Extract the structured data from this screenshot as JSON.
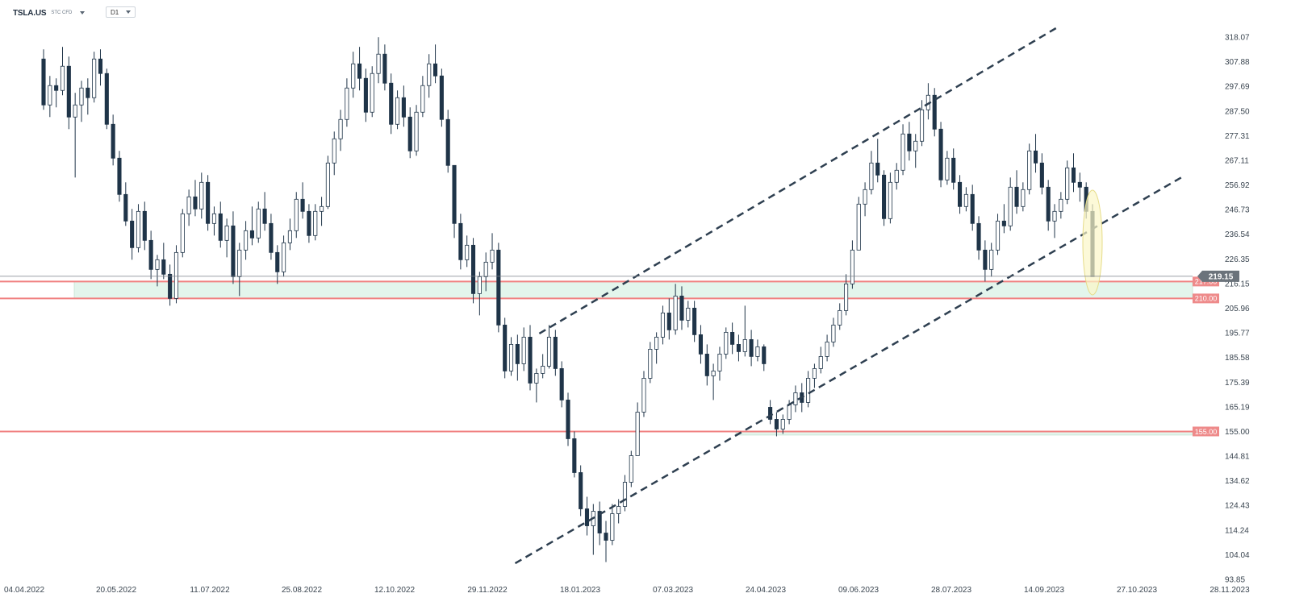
{
  "toolbar": {
    "symbol": "TSLA.US",
    "instrument_type": "STC CFD",
    "timeframe": "D1",
    "symbol_dropdown_icon": "chevron-down-icon",
    "timeframe_dropdown_icon": "chevron-down-icon"
  },
  "colors": {
    "candle_up": "#ffffff",
    "candle_down": "#1f3448",
    "candle_outline": "#1f3448",
    "level_line": "#f08080",
    "zone_fill": "#e3f5ec",
    "trend_line": "#2e3f50",
    "highlight_ellipse": "#fbf6c8",
    "price_tag": "#6b737b"
  },
  "chart_data": {
    "type": "candlestick",
    "ylim": [
      93.85,
      318.07
    ],
    "y_ticks": [
      "318.07",
      "307.88",
      "297.69",
      "287.50",
      "277.31",
      "267.11",
      "256.92",
      "246.73",
      "236.54",
      "226.35",
      "216.15",
      "205.96",
      "195.77",
      "185.58",
      "175.39",
      "165.19",
      "155.00",
      "144.81",
      "134.62",
      "124.43",
      "114.24",
      "104.04",
      "93.85"
    ],
    "x_ticks": [
      "04.04.2022",
      "20.05.2022",
      "11.07.2022",
      "25.08.2022",
      "12.10.2022",
      "29.11.2022",
      "18.01.2023",
      "07.03.2023",
      "24.04.2023",
      "09.06.2023",
      "28.07.2023",
      "14.09.2023",
      "27.10.2023",
      "28.11.2023"
    ],
    "current_price": "219.15",
    "levels": [
      {
        "label": "217.00",
        "value": 217.0
      },
      {
        "label": "210.00",
        "value": 210.0
      },
      {
        "label": "155.00",
        "value": 155.0
      }
    ],
    "support_zones": [
      {
        "from": 210.0,
        "to": 217.0
      },
      {
        "from": 153.5,
        "to": 155.0
      }
    ],
    "trend_channel": {
      "upper": [
        {
          "date": "27.12.2022",
          "value": 195.5
        },
        {
          "date": "20.09.2023",
          "value": 322.0
        }
      ],
      "lower": [
        {
          "date": "14.12.2022",
          "value": 100.5
        },
        {
          "date": "12.11.2023",
          "value": 260.5
        }
      ]
    },
    "series": [
      {
        "values": [
          [
            309.0,
            313.0,
            288.0,
            290.0
          ],
          [
            290.0,
            302.0,
            285.0,
            298.0
          ],
          [
            298.0,
            301.0,
            289.0,
            296.0
          ],
          [
            296.0,
            314.0,
            294.0,
            306.0
          ],
          [
            306.0,
            310.0,
            280.0,
            285.0
          ],
          [
            285.0,
            295.0,
            260.0,
            290.0
          ],
          [
            290.0,
            300.0,
            283.0,
            297.0
          ],
          [
            297.0,
            301.0,
            286.0,
            293.0
          ],
          [
            293.0,
            312.0,
            291.0,
            309.0
          ],
          [
            309.0,
            313.0,
            298.0,
            303.0
          ],
          [
            303.0,
            305.0,
            280.0,
            282.0
          ],
          [
            282.0,
            286.0,
            265.0,
            268.0
          ],
          [
            268.0,
            271.0,
            250.0,
            253.0
          ],
          [
            253.0,
            258.0,
            240.0,
            242.0
          ],
          [
            242.0,
            247.0,
            226.0,
            231.0
          ],
          [
            231.0,
            249.0,
            229.0,
            246.0
          ],
          [
            246.0,
            250.0,
            230.0,
            234.0
          ],
          [
            234.0,
            238.0,
            218.0,
            222.0
          ],
          [
            222.0,
            228.0,
            215.0,
            226.0
          ],
          [
            226.0,
            233.0,
            218.0,
            220.0
          ],
          [
            220.0,
            224.0,
            207.0,
            210.0
          ],
          [
            210.0,
            232.0,
            208.0,
            229.0
          ],
          [
            229.0,
            247.0,
            227.0,
            245.0
          ],
          [
            245.0,
            255.0,
            240.0,
            252.0
          ],
          [
            252.0,
            259.0,
            244.0,
            247.0
          ],
          [
            247.0,
            262.0,
            243.0,
            258.0
          ],
          [
            258.0,
            261.0,
            238.0,
            241.0
          ],
          [
            241.0,
            248.0,
            236.0,
            245.0
          ],
          [
            245.0,
            250.0,
            231.0,
            234.0
          ],
          [
            234.0,
            243.0,
            227.0,
            240.0
          ],
          [
            240.0,
            246.0,
            216.0,
            219.0
          ],
          [
            219.0,
            233.0,
            211.0,
            230.0
          ],
          [
            230.0,
            242.0,
            226.0,
            238.0
          ],
          [
            238.0,
            248.0,
            232.0,
            235.0
          ],
          [
            235.0,
            250.0,
            233.0,
            247.0
          ],
          [
            247.0,
            254.0,
            238.0,
            241.0
          ],
          [
            241.0,
            245.0,
            226.0,
            229.0
          ],
          [
            229.0,
            232.0,
            216.0,
            221.0
          ],
          [
            221.0,
            236.0,
            219.0,
            233.0
          ],
          [
            233.0,
            243.0,
            230.0,
            238.0
          ],
          [
            238.0,
            254.0,
            235.0,
            251.0
          ],
          [
            251.0,
            258.0,
            243.0,
            246.0
          ],
          [
            246.0,
            249.0,
            233.0,
            236.0
          ],
          [
            236.0,
            249.0,
            234.0,
            246.0
          ],
          [
            246.0,
            252.0,
            240.0,
            248.0
          ],
          [
            248.0,
            269.0,
            247.0,
            266.0
          ],
          [
            266.0,
            279.0,
            261.0,
            276.0
          ],
          [
            276.0,
            288.0,
            271.0,
            284.0
          ],
          [
            284.0,
            301.0,
            281.0,
            297.0
          ],
          [
            297.0,
            312.0,
            293.0,
            307.0
          ],
          [
            307.0,
            314.0,
            296.0,
            301.0
          ],
          [
            301.0,
            305.0,
            283.0,
            287.0
          ],
          [
            287.0,
            306.0,
            285.0,
            303.0
          ],
          [
            303.0,
            318.0,
            299.0,
            311.0
          ],
          [
            311.0,
            315.0,
            296.0,
            299.0
          ],
          [
            299.0,
            303.0,
            278.0,
            282.0
          ],
          [
            282.0,
            296.0,
            280.0,
            293.0
          ],
          [
            293.0,
            298.0,
            281.0,
            285.0
          ],
          [
            285.0,
            289.0,
            268.0,
            271.0
          ],
          [
            271.0,
            290.0,
            269.0,
            287.0
          ],
          [
            287.0,
            302.0,
            285.0,
            298.0
          ],
          [
            298.0,
            311.0,
            293.0,
            307.0
          ],
          [
            307.0,
            315.0,
            299.0,
            302.0
          ],
          [
            302.0,
            305.0,
            281.0,
            284.0
          ],
          [
            284.0,
            288.0,
            262.0,
            265.0
          ],
          [
            265.0,
            249.0,
            235.0,
            241.0
          ],
          [
            241.0,
            245.0,
            222.0,
            226.0
          ],
          [
            226.0,
            236.0,
            223.0,
            232.0
          ],
          [
            232.0,
            235.0,
            208.0,
            212.0
          ],
          [
            212.0,
            221.0,
            203.0,
            219.0
          ],
          [
            219.0,
            229.0,
            213.0,
            225.0
          ],
          [
            225.0,
            237.0,
            222.0,
            230.0
          ],
          [
            230.0,
            233.0,
            196.0,
            199.0
          ],
          [
            199.0,
            202.0,
            177.0,
            180.0
          ],
          [
            180.0,
            194.0,
            178.0,
            191.0
          ],
          [
            191.0,
            195.0,
            176.0,
            183.0
          ],
          [
            183.0,
            198.0,
            180.0,
            194.0
          ],
          [
            194.0,
            199.0,
            172.0,
            175.0
          ],
          [
            175.0,
            181.0,
            167.0,
            179.0
          ],
          [
            179.0,
            187.0,
            177.0,
            182.0
          ],
          [
            182.0,
            199.0,
            181.0,
            194.0
          ],
          [
            194.0,
            197.0,
            178.0,
            181.0
          ],
          [
            181.0,
            184.0,
            165.0,
            168.0
          ],
          [
            168.0,
            171.0,
            149.0,
            152.0
          ],
          [
            152.0,
            155.0,
            136.0,
            138.0
          ],
          [
            138.0,
            141.0,
            120.0,
            123.0
          ],
          [
            123.0,
            128.0,
            112.0,
            116.0
          ],
          [
            116.0,
            125.0,
            104.0,
            122.0
          ],
          [
            122.0,
            126.0,
            108.0,
            113.0
          ],
          [
            113.0,
            118.0,
            101.0,
            110.0
          ],
          [
            110.0,
            125.0,
            108.0,
            121.0
          ],
          [
            121.0,
            127.0,
            117.0,
            124.0
          ],
          [
            124.0,
            137.0,
            122.0,
            134.0
          ],
          [
            134.0,
            147.0,
            132.0,
            145.0
          ],
          [
            145.0,
            167.0,
            155.0,
            163.0
          ],
          [
            163.0,
            180.0,
            161.0,
            177.0
          ],
          [
            177.0,
            192.0,
            175.0,
            189.0
          ],
          [
            189.0,
            196.0,
            183.0,
            194.0
          ],
          [
            194.0,
            207.0,
            191.0,
            204.0
          ],
          [
            204.0,
            210.0,
            193.0,
            197.0
          ],
          [
            197.0,
            216.0,
            195.0,
            211.0
          ],
          [
            211.0,
            215.0,
            197.0,
            201.0
          ],
          [
            201.0,
            209.0,
            198.0,
            206.0
          ],
          [
            206.0,
            209.0,
            192.0,
            195.0
          ],
          [
            195.0,
            199.0,
            183.0,
            187.0
          ],
          [
            187.0,
            191.0,
            174.0,
            178.0
          ],
          [
            178.0,
            183.0,
            168.0,
            180.0
          ],
          [
            180.0,
            190.0,
            176.0,
            187.0
          ],
          [
            187.0,
            198.0,
            185.0,
            196.0
          ],
          [
            196.0,
            200.0,
            187.0,
            191.0
          ],
          [
            191.0,
            195.0,
            184.0,
            188.0
          ],
          [
            188.0,
            207.0,
            186.0,
            193.0
          ],
          [
            193.0,
            197.0,
            182.0,
            186.0
          ],
          [
            186.0,
            193.0,
            184.0,
            190.0
          ],
          [
            190.0,
            191.0,
            180.0,
            183.0
          ],
          [
            165.0,
            168.0,
            158.0,
            160.0
          ],
          [
            160.0,
            163.0,
            153.0,
            156.0
          ],
          [
            156.0,
            162.0,
            154.0,
            160.0
          ],
          [
            160.0,
            168.0,
            158.0,
            166.0
          ],
          [
            166.0,
            174.0,
            163.0,
            171.0
          ],
          [
            171.0,
            175.0,
            163.0,
            167.0
          ],
          [
            167.0,
            180.0,
            165.0,
            177.0
          ],
          [
            177.0,
            183.0,
            173.0,
            181.0
          ],
          [
            181.0,
            190.0,
            179.0,
            186.0
          ],
          [
            186.0,
            195.0,
            184.0,
            192.0
          ],
          [
            192.0,
            202.0,
            190.0,
            199.0
          ],
          [
            199.0,
            208.0,
            197.0,
            205.0
          ],
          [
            205.0,
            220.0,
            203.0,
            216.0
          ],
          [
            216.0,
            234.0,
            214.0,
            230.0
          ],
          [
            230.0,
            252.0,
            238.0,
            249.0
          ],
          [
            249.0,
            258.0,
            244.0,
            255.0
          ],
          [
            255.0,
            271.0,
            253.0,
            266.0
          ],
          [
            266.0,
            276.0,
            258.0,
            261.0
          ],
          [
            261.0,
            263.0,
            240.0,
            243.0
          ],
          [
            243.0,
            262.0,
            241.0,
            258.0
          ],
          [
            258.0,
            266.0,
            255.0,
            263.0
          ],
          [
            263.0,
            282.0,
            261.0,
            278.0
          ],
          [
            278.0,
            283.0,
            267.0,
            271.0
          ],
          [
            271.0,
            278.0,
            264.0,
            275.0
          ],
          [
            275.0,
            292.0,
            273.0,
            288.0
          ],
          [
            288.0,
            299.0,
            284.0,
            294.0
          ],
          [
            294.0,
            297.0,
            277.0,
            280.0
          ],
          [
            280.0,
            283.0,
            256.0,
            259.0
          ],
          [
            259.0,
            271.0,
            257.0,
            268.0
          ],
          [
            268.0,
            272.0,
            255.0,
            258.0
          ],
          [
            258.0,
            261.0,
            245.0,
            248.0
          ],
          [
            248.0,
            256.0,
            246.0,
            253.0
          ],
          [
            253.0,
            257.0,
            238.0,
            241.0
          ],
          [
            241.0,
            244.0,
            226.0,
            230.0
          ],
          [
            230.0,
            234.0,
            217.0,
            222.0
          ],
          [
            222.0,
            233.0,
            219.0,
            230.0
          ],
          [
            230.0,
            245.0,
            228.0,
            242.0
          ],
          [
            242.0,
            249.0,
            237.0,
            240.0
          ],
          [
            240.0,
            260.0,
            238.0,
            256.0
          ],
          [
            256.0,
            263.0,
            245.0,
            248.0
          ],
          [
            248.0,
            258.0,
            246.0,
            255.0
          ],
          [
            255.0,
            274.0,
            253.0,
            271.0
          ],
          [
            271.0,
            278.0,
            262.0,
            266.0
          ],
          [
            266.0,
            270.0,
            253.0,
            256.0
          ],
          [
            256.0,
            259.0,
            238.0,
            242.0
          ],
          [
            242.0,
            249.0,
            235.0,
            246.0
          ],
          [
            246.0,
            254.0,
            243.0,
            251.0
          ],
          [
            251.0,
            267.0,
            249.0,
            264.0
          ],
          [
            264.0,
            270.0,
            254.0,
            258.0
          ],
          [
            258.0,
            262.0,
            250.0,
            256.0
          ],
          [
            256.0,
            258.0,
            243.0,
            246.0
          ],
          [
            246.0,
            249.0,
            224.0,
            219.0
          ]
        ]
      }
    ]
  }
}
